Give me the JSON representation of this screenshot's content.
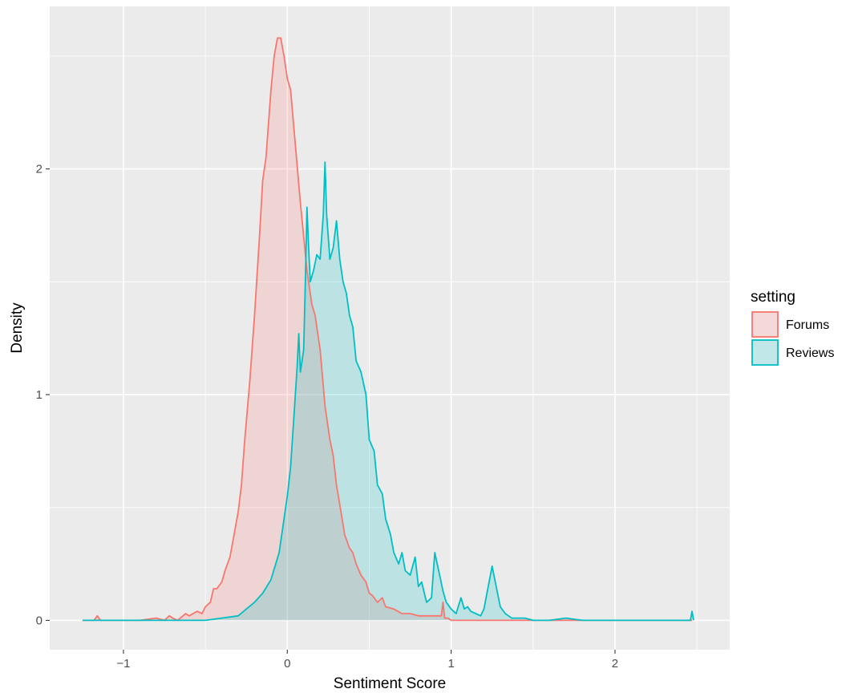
{
  "chart_data": {
    "type": "area",
    "xlabel": "Sentiment Score",
    "ylabel": "Density",
    "xlim": [
      -1.45,
      2.7
    ],
    "ylim": [
      -0.13,
      2.72
    ],
    "xticks": [
      -1,
      0,
      1,
      2
    ],
    "yticks": [
      0,
      1,
      2
    ],
    "xtick_labels": [
      "−1",
      "0",
      "1",
      "2"
    ],
    "ytick_labels": [
      "0",
      "1",
      "2"
    ],
    "grid": true,
    "legend": {
      "title": "setting",
      "position": "right"
    },
    "series": [
      {
        "name": "Forums",
        "color": "#F8766D",
        "x": [
          -1.25,
          -1.18,
          -1.16,
          -1.14,
          -1.05,
          -0.9,
          -0.8,
          -0.75,
          -0.72,
          -0.7,
          -0.67,
          -0.62,
          -0.6,
          -0.55,
          -0.52,
          -0.5,
          -0.47,
          -0.45,
          -0.43,
          -0.4,
          -0.38,
          -0.35,
          -0.32,
          -0.3,
          -0.28,
          -0.26,
          -0.23,
          -0.2,
          -0.17,
          -0.15,
          -0.13,
          -0.1,
          -0.08,
          -0.06,
          -0.04,
          -0.02,
          0.0,
          0.02,
          0.05,
          0.08,
          0.1,
          0.12,
          0.15,
          0.17,
          0.2,
          0.23,
          0.26,
          0.28,
          0.3,
          0.33,
          0.35,
          0.38,
          0.4,
          0.42,
          0.45,
          0.48,
          0.5,
          0.52,
          0.55,
          0.58,
          0.6,
          0.65,
          0.7,
          0.75,
          0.8,
          0.85,
          0.9,
          0.94,
          0.95,
          0.96,
          0.98,
          1.0,
          1.1,
          1.2,
          1.4,
          1.7,
          2.0,
          2.3,
          2.47
        ],
        "y": [
          0.0,
          0.0,
          0.02,
          0.0,
          0.0,
          0.0,
          0.01,
          0.0,
          0.02,
          0.01,
          0.0,
          0.03,
          0.02,
          0.04,
          0.03,
          0.06,
          0.08,
          0.14,
          0.14,
          0.17,
          0.22,
          0.28,
          0.4,
          0.48,
          0.6,
          0.8,
          1.05,
          1.35,
          1.7,
          1.95,
          2.05,
          2.35,
          2.5,
          2.58,
          2.58,
          2.5,
          2.4,
          2.35,
          2.1,
          1.85,
          1.7,
          1.55,
          1.4,
          1.35,
          1.2,
          0.95,
          0.8,
          0.73,
          0.6,
          0.47,
          0.38,
          0.32,
          0.3,
          0.25,
          0.2,
          0.17,
          0.12,
          0.11,
          0.08,
          0.1,
          0.06,
          0.05,
          0.03,
          0.03,
          0.02,
          0.02,
          0.02,
          0.02,
          0.08,
          0.01,
          0.01,
          0.0,
          0.0,
          0.0,
          0.0,
          0.0,
          0.0,
          0.0,
          0.0
        ]
      },
      {
        "name": "Reviews",
        "color": "#00BFC4",
        "x": [
          -1.25,
          -1.0,
          -0.7,
          -0.5,
          -0.4,
          -0.3,
          -0.25,
          -0.2,
          -0.15,
          -0.1,
          -0.05,
          0.0,
          0.02,
          0.04,
          0.06,
          0.07,
          0.08,
          0.1,
          0.11,
          0.12,
          0.13,
          0.14,
          0.16,
          0.18,
          0.2,
          0.22,
          0.23,
          0.24,
          0.26,
          0.28,
          0.3,
          0.32,
          0.34,
          0.36,
          0.38,
          0.4,
          0.42,
          0.45,
          0.48,
          0.5,
          0.53,
          0.55,
          0.58,
          0.6,
          0.63,
          0.65,
          0.68,
          0.7,
          0.72,
          0.75,
          0.78,
          0.8,
          0.82,
          0.85,
          0.88,
          0.9,
          0.93,
          0.95,
          0.97,
          1.0,
          1.03,
          1.06,
          1.08,
          1.1,
          1.12,
          1.15,
          1.18,
          1.2,
          1.25,
          1.3,
          1.33,
          1.35,
          1.37,
          1.4,
          1.45,
          1.5,
          1.6,
          1.7,
          1.8,
          2.0,
          2.2,
          2.4,
          2.46,
          2.47,
          2.48
        ],
        "y": [
          0.0,
          0.0,
          0.0,
          0.0,
          0.01,
          0.02,
          0.05,
          0.08,
          0.12,
          0.18,
          0.3,
          0.55,
          0.68,
          0.9,
          1.12,
          1.27,
          1.1,
          1.2,
          1.5,
          1.83,
          1.65,
          1.5,
          1.55,
          1.62,
          1.6,
          1.8,
          2.03,
          1.8,
          1.6,
          1.65,
          1.77,
          1.6,
          1.5,
          1.45,
          1.35,
          1.3,
          1.15,
          1.1,
          1.0,
          0.8,
          0.75,
          0.6,
          0.56,
          0.45,
          0.38,
          0.3,
          0.25,
          0.3,
          0.22,
          0.2,
          0.28,
          0.15,
          0.17,
          0.08,
          0.1,
          0.3,
          0.2,
          0.13,
          0.08,
          0.05,
          0.03,
          0.1,
          0.05,
          0.06,
          0.04,
          0.03,
          0.02,
          0.05,
          0.24,
          0.06,
          0.03,
          0.02,
          0.01,
          0.01,
          0.01,
          0.0,
          0.0,
          0.01,
          0.0,
          0.0,
          0.0,
          0.0,
          0.0,
          0.04,
          0.0
        ]
      }
    ]
  }
}
